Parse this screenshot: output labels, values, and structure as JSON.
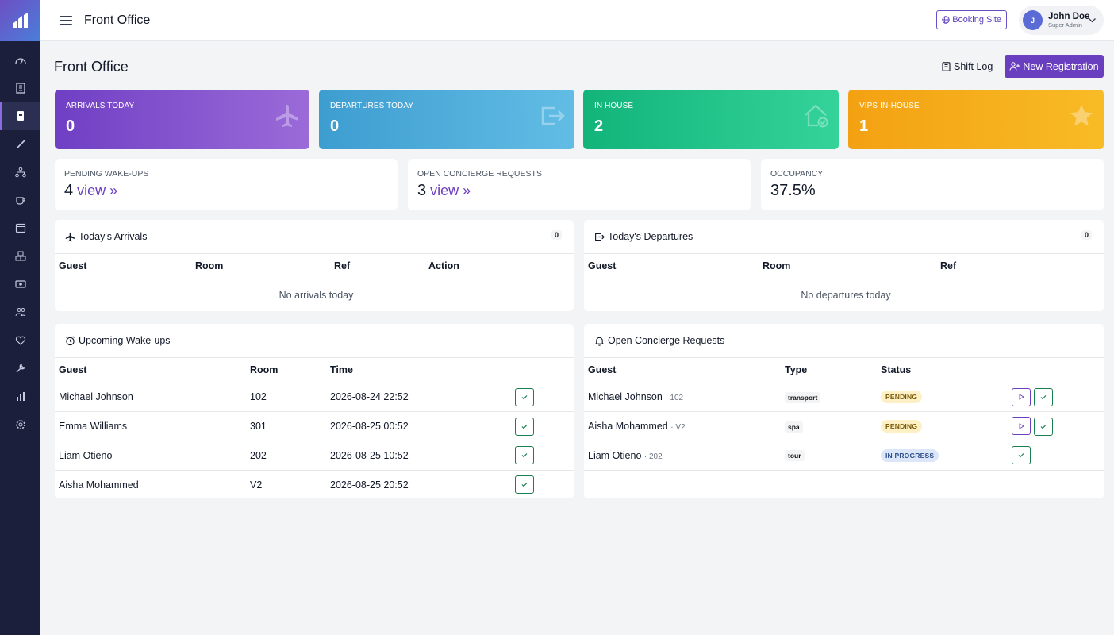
{
  "app": {
    "title": "Front Office"
  },
  "sidebar": {
    "items": [
      {
        "icon": "dashboard-icon"
      },
      {
        "icon": "building-icon"
      },
      {
        "icon": "front-desk-icon",
        "active": true
      },
      {
        "icon": "brush-icon"
      },
      {
        "icon": "org-chart-icon"
      },
      {
        "icon": "coffee-icon"
      },
      {
        "icon": "calendar-icon"
      },
      {
        "icon": "boxes-icon"
      },
      {
        "icon": "cash-icon"
      },
      {
        "icon": "users-icon"
      },
      {
        "icon": "handshake-icon"
      },
      {
        "icon": "wrench-icon"
      },
      {
        "icon": "bar-chart-icon"
      },
      {
        "icon": "settings-icon"
      }
    ]
  },
  "header": {
    "title": "Front Office",
    "booking_label": "Booking Site",
    "user": {
      "initial": "J",
      "name": "John Doe",
      "role": "Super Admin"
    }
  },
  "page": {
    "title": "Front Office",
    "shift_log_label": "Shift Log",
    "new_registration_label": "New Registration"
  },
  "stats": [
    {
      "label": "ARRIVALS TODAY",
      "value": "0"
    },
    {
      "label": "DEPARTURES TODAY",
      "value": "0"
    },
    {
      "label": "IN HOUSE",
      "value": "2"
    },
    {
      "label": "VIPS IN-HOUSE",
      "value": "1"
    }
  ],
  "mini": [
    {
      "label": "PENDING WAKE-UPS",
      "value": "4",
      "link": "view »"
    },
    {
      "label": "OPEN CONCIERGE REQUESTS",
      "value": "3",
      "link": "view »"
    },
    {
      "label": "OCCUPANCY",
      "value": "37.5%"
    }
  ],
  "arrivals": {
    "title": "Today's Arrivals",
    "count": "0",
    "columns": [
      "Guest",
      "Room",
      "Ref",
      "Action"
    ],
    "empty": "No arrivals today"
  },
  "departures": {
    "title": "Today's Departures",
    "count": "0",
    "columns": [
      "Guest",
      "Room",
      "Ref"
    ],
    "empty": "No departures today"
  },
  "wakeups": {
    "title": "Upcoming Wake-ups",
    "columns": [
      "Guest",
      "Room",
      "Time"
    ],
    "rows": [
      {
        "guest": "Michael Johnson",
        "room": "102",
        "time": "2026-08-24 22:52"
      },
      {
        "guest": "Emma Williams",
        "room": "301",
        "time": "2026-08-25 00:52"
      },
      {
        "guest": "Liam Otieno",
        "room": "202",
        "time": "2026-08-25 10:52"
      },
      {
        "guest": "Aisha Mohammed",
        "room": "V2",
        "time": "2026-08-25 20:52"
      }
    ]
  },
  "concierge": {
    "title": "Open Concierge Requests",
    "columns": [
      "Guest",
      "Type",
      "Status"
    ],
    "rows": [
      {
        "guest": "Michael Johnson",
        "room": "· 102",
        "type": "transport",
        "status": "PENDING"
      },
      {
        "guest": "Aisha Mohammed",
        "room": "· V2",
        "type": "spa",
        "status": "PENDING"
      },
      {
        "guest": "Liam Otieno",
        "room": "· 202",
        "type": "tour",
        "status": "IN PROGRESS"
      }
    ]
  },
  "colors": {
    "sidebar_bg": "#1c1f3b",
    "accent": "#6a3fbf",
    "success": "#1a7f4f"
  }
}
